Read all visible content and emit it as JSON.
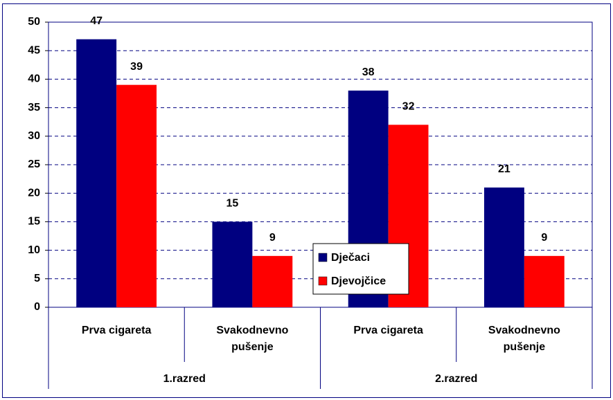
{
  "chart_data": {
    "type": "bar",
    "categories": [
      "Prva cigareta",
      "Svakodnevno pušenje",
      "Prva cigareta",
      "Svakodnevno pušenje"
    ],
    "groups": [
      "1.razred",
      "2.razred"
    ],
    "series": [
      {
        "name": "Dječaci",
        "color": "#000080",
        "values": [
          47,
          15,
          38,
          21
        ]
      },
      {
        "name": "Djevojčice",
        "color": "#ff0000",
        "values": [
          39,
          9,
          32,
          9
        ]
      }
    ],
    "ylim": [
      0,
      50
    ],
    "yticks": [
      0,
      5,
      10,
      15,
      20,
      25,
      30,
      35,
      40,
      45,
      50
    ],
    "grid": true,
    "legend": "center"
  }
}
